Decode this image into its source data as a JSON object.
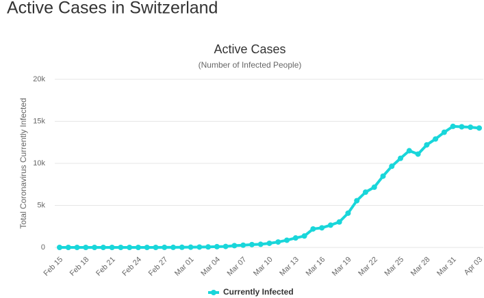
{
  "heading": "Active Cases in Switzerland",
  "chart_data": {
    "type": "line",
    "title": "Active Cases",
    "subtitle": "(Number of Infected People)",
    "y_label": "Total Coronavirus Currently Infected",
    "categories": [
      "Feb 15",
      null,
      null,
      "Feb 18",
      null,
      null,
      "Feb 21",
      null,
      null,
      "Feb 24",
      null,
      null,
      "Feb 27",
      null,
      null,
      "Mar 01",
      null,
      null,
      "Mar 04",
      null,
      null,
      "Mar 07",
      null,
      null,
      "Mar 10",
      null,
      null,
      "Mar 13",
      null,
      null,
      "Mar 16",
      null,
      null,
      "Mar 19",
      null,
      null,
      "Mar 22",
      null,
      null,
      "Mar 25",
      null,
      null,
      "Mar 28",
      null,
      null,
      "Mar 31",
      null,
      null,
      "Apr 03"
    ],
    "series": [
      {
        "name": "Currently Infected",
        "color": "#19d6da",
        "values": [
          0,
          0,
          0,
          0,
          0,
          0,
          0,
          0,
          0,
          0,
          1,
          1,
          8,
          8,
          18,
          27,
          42,
          56,
          90,
          114,
          214,
          268,
          337,
          374,
          491,
          645,
          858,
          1125,
          1359,
          2200,
          2330,
          2650,
          3028,
          4075,
          5560,
          6575,
          7165,
          8480,
          9650,
          10600,
          11500,
          11100,
          12200,
          12900,
          13700,
          14400,
          14350,
          14300,
          14200
        ]
      }
    ],
    "ylim": [
      0,
      20000
    ],
    "yticks": [
      0,
      {
        "value": 5000,
        "label": "5k"
      },
      {
        "value": 10000,
        "label": "10k"
      },
      {
        "value": 15000,
        "label": "15k"
      },
      {
        "value": 20000,
        "label": "20k"
      }
    ],
    "grid": true,
    "legend": "bottom"
  }
}
